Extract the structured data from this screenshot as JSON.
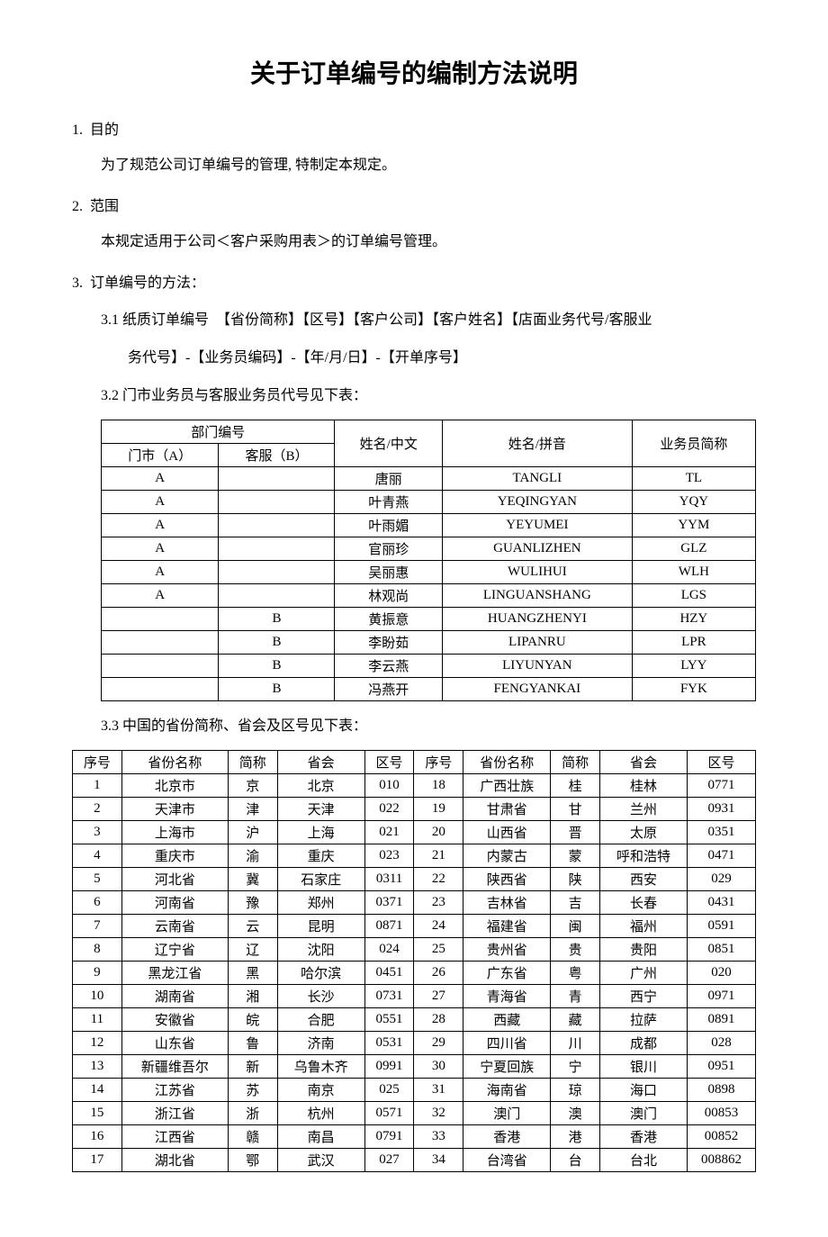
{
  "title": "关于订单编号的编制方法说明",
  "sections": {
    "s1": {
      "num": "1.",
      "heading": "目的",
      "body": "为了规范公司订单编号的管理, 特制定本规定。"
    },
    "s2": {
      "num": "2.",
      "heading": "范围",
      "body": "本规定适用于公司＜客户采购用表＞的订单编号管理。"
    },
    "s3": {
      "num": "3.",
      "heading": "订单编号的方法："
    }
  },
  "subsections": {
    "s31": "3.1  纸质订单编号　【省份简称】【区号】【客户公司】【客户姓名】【店面业务代号/客服业",
    "s31cont": "务代号】-【业务员编码】-【年/月/日】-【开单序号】",
    "s32": "3.2 门市业务员与客服业务员代号见下表：",
    "s33": "3.3 中国的省份简称、省会及区号见下表："
  },
  "staffTable": {
    "headers": {
      "dept": "部门编号",
      "deptA": "门市（A）",
      "deptB": "客服（B）",
      "nameCn": "姓名/中文",
      "namePy": "姓名/拼音",
      "abbr": "业务员简称"
    },
    "rows": [
      {
        "a": "A",
        "b": "",
        "cn": "唐丽",
        "py": "TANGLI",
        "abbr": "TL"
      },
      {
        "a": "A",
        "b": "",
        "cn": "叶青燕",
        "py": "YEQINGYAN",
        "abbr": "YQY"
      },
      {
        "a": "A",
        "b": "",
        "cn": "叶雨媚",
        "py": "YEYUMEI",
        "abbr": "YYM"
      },
      {
        "a": "A",
        "b": "",
        "cn": "官丽珍",
        "py": "GUANLIZHEN",
        "abbr": "GLZ"
      },
      {
        "a": "A",
        "b": "",
        "cn": "吴丽惠",
        "py": "WULIHUI",
        "abbr": "WLH"
      },
      {
        "a": "A",
        "b": "",
        "cn": "林观尚",
        "py": "LINGUANSHANG",
        "abbr": "LGS"
      },
      {
        "a": "",
        "b": "B",
        "cn": "黄振意",
        "py": "HUANGZHENYI",
        "abbr": "HZY"
      },
      {
        "a": "",
        "b": "B",
        "cn": "李盼茹",
        "py": "LIPANRU",
        "abbr": "LPR"
      },
      {
        "a": "",
        "b": "B",
        "cn": "李云燕",
        "py": "LIYUNYAN",
        "abbr": "LYY"
      },
      {
        "a": "",
        "b": "B",
        "cn": "冯燕开",
        "py": "FENGYANKAI",
        "abbr": "FYK"
      }
    ]
  },
  "provinceTable": {
    "headers": {
      "seq": "序号",
      "name": "省份名称",
      "abbr": "简称",
      "capital": "省会",
      "code": "区号"
    },
    "left": [
      {
        "seq": "1",
        "name": "北京市",
        "abbr": "京",
        "capital": "北京",
        "code": "010"
      },
      {
        "seq": "2",
        "name": "天津市",
        "abbr": "津",
        "capital": "天津",
        "code": "022"
      },
      {
        "seq": "3",
        "name": "上海市",
        "abbr": "沪",
        "capital": "上海",
        "code": "021"
      },
      {
        "seq": "4",
        "name": "重庆市",
        "abbr": "渝",
        "capital": "重庆",
        "code": "023"
      },
      {
        "seq": "5",
        "name": "河北省",
        "abbr": "冀",
        "capital": "石家庄",
        "code": "0311"
      },
      {
        "seq": "6",
        "name": "河南省",
        "abbr": "豫",
        "capital": "郑州",
        "code": "0371"
      },
      {
        "seq": "7",
        "name": "云南省",
        "abbr": "云",
        "capital": "昆明",
        "code": "0871"
      },
      {
        "seq": "8",
        "name": "辽宁省",
        "abbr": "辽",
        "capital": "沈阳",
        "code": "024"
      },
      {
        "seq": "9",
        "name": "黑龙江省",
        "abbr": "黑",
        "capital": "哈尔滨",
        "code": "0451"
      },
      {
        "seq": "10",
        "name": "湖南省",
        "abbr": "湘",
        "capital": "长沙",
        "code": "0731"
      },
      {
        "seq": "11",
        "name": "安徽省",
        "abbr": "皖",
        "capital": "合肥",
        "code": "0551"
      },
      {
        "seq": "12",
        "name": "山东省",
        "abbr": "鲁",
        "capital": "济南",
        "code": "0531"
      },
      {
        "seq": "13",
        "name": "新疆维吾尔",
        "abbr": "新",
        "capital": "乌鲁木齐",
        "code": "0991"
      },
      {
        "seq": "14",
        "name": "江苏省",
        "abbr": "苏",
        "capital": "南京",
        "code": "025"
      },
      {
        "seq": "15",
        "name": "浙江省",
        "abbr": "浙",
        "capital": "杭州",
        "code": "0571"
      },
      {
        "seq": "16",
        "name": "江西省",
        "abbr": "赣",
        "capital": "南昌",
        "code": "0791"
      },
      {
        "seq": "17",
        "name": "湖北省",
        "abbr": "鄂",
        "capital": "武汉",
        "code": "027"
      }
    ],
    "right": [
      {
        "seq": "18",
        "name": "广西壮族",
        "abbr": "桂",
        "capital": "桂林",
        "code": "0771"
      },
      {
        "seq": "19",
        "name": "甘肃省",
        "abbr": "甘",
        "capital": "兰州",
        "code": "0931"
      },
      {
        "seq": "20",
        "name": "山西省",
        "abbr": "晋",
        "capital": "太原",
        "code": "0351"
      },
      {
        "seq": "21",
        "name": "内蒙古",
        "abbr": "蒙",
        "capital": "呼和浩特",
        "code": "0471"
      },
      {
        "seq": "22",
        "name": "陕西省",
        "abbr": "陕",
        "capital": "西安",
        "code": "029"
      },
      {
        "seq": "23",
        "name": "吉林省",
        "abbr": "吉",
        "capital": "长春",
        "code": "0431"
      },
      {
        "seq": "24",
        "name": "福建省",
        "abbr": "闽",
        "capital": "福州",
        "code": "0591"
      },
      {
        "seq": "25",
        "name": "贵州省",
        "abbr": "贵",
        "capital": "贵阳",
        "code": "0851"
      },
      {
        "seq": "26",
        "name": "广东省",
        "abbr": "粤",
        "capital": "广州",
        "code": "020"
      },
      {
        "seq": "27",
        "name": "青海省",
        "abbr": "青",
        "capital": "西宁",
        "code": "0971"
      },
      {
        "seq": "28",
        "name": "西藏",
        "abbr": "藏",
        "capital": "拉萨",
        "code": "0891"
      },
      {
        "seq": "29",
        "name": "四川省",
        "abbr": "川",
        "capital": "成都",
        "code": "028"
      },
      {
        "seq": "30",
        "name": "宁夏回族",
        "abbr": "宁",
        "capital": "银川",
        "code": "0951"
      },
      {
        "seq": "31",
        "name": "海南省",
        "abbr": "琼",
        "capital": "海口",
        "code": "0898"
      },
      {
        "seq": "32",
        "name": "澳门",
        "abbr": "澳",
        "capital": "澳门",
        "code": "00853"
      },
      {
        "seq": "33",
        "name": "香港",
        "abbr": "港",
        "capital": "香港",
        "code": "00852"
      },
      {
        "seq": "34",
        "name": "台湾省",
        "abbr": "台",
        "capital": "台北",
        "code": "008862"
      }
    ]
  }
}
